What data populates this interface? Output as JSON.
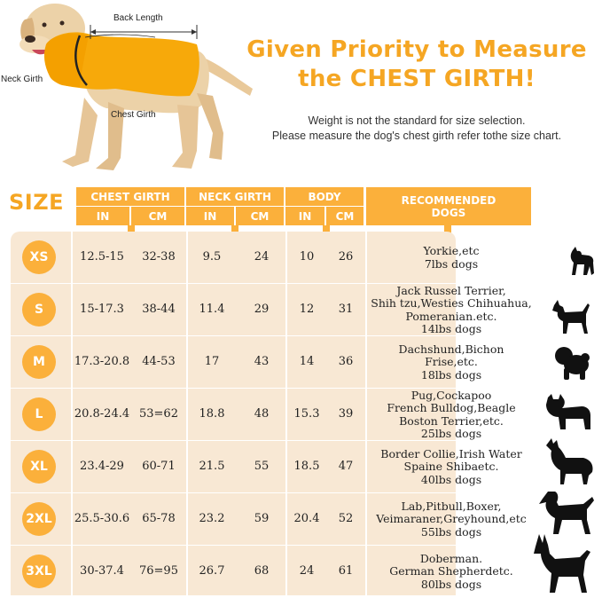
{
  "illustration": {
    "back_length_label": "Back Length",
    "neck_girth_label": "Neck Girth",
    "chest_girth_label": "Chest Girth"
  },
  "headline": {
    "line1": "Given Priority to Measure",
    "line2": "the CHEST GIRTH!"
  },
  "note": {
    "line1": "Weight is not the standard for size selection.",
    "line2": "Please measure the dog's chest girth refer tothe size chart."
  },
  "table": {
    "size_title": "SIZE",
    "headers": {
      "chest": "CHEST GIRTH",
      "neck": "NECK GIRTH",
      "body": "BODY",
      "recommended_line1": "RECOMMENDED",
      "recommended_line2": "DOGS",
      "in": "IN",
      "cm": "CM"
    },
    "rows": [
      {
        "size": "XS",
        "chest_in": "12.5-15",
        "chest_cm": "32-38",
        "neck_in": "9.5",
        "neck_cm": "24",
        "body_in": "10",
        "body_cm": "26",
        "rec": [
          "Yorkie,etc",
          "7lbs dogs"
        ]
      },
      {
        "size": "S",
        "chest_in": "15-17.3",
        "chest_cm": "38-44",
        "neck_in": "11.4",
        "neck_cm": "29",
        "body_in": "12",
        "body_cm": "31",
        "rec": [
          "Jack Russel Terrier,",
          "Shih tzu,Westies Chihuahua,",
          "Pomeranian.etc.",
          "14lbs dogs"
        ]
      },
      {
        "size": "M",
        "chest_in": "17.3-20.8",
        "chest_cm": "44-53",
        "neck_in": "17",
        "neck_cm": "43",
        "body_in": "14",
        "body_cm": "36",
        "rec": [
          "Dachshund,Bichon",
          "Frise,etc.",
          "18lbs dogs"
        ]
      },
      {
        "size": "L",
        "chest_in": "20.8-24.4",
        "chest_cm": "53=62",
        "neck_in": "18.8",
        "neck_cm": "48",
        "body_in": "15.3",
        "body_cm": "39",
        "rec": [
          "Pug,Cockapoo",
          "French Bulldog,Beagle",
          "Boston Terrier,etc.",
          "25lbs dogs"
        ]
      },
      {
        "size": "XL",
        "chest_in": "23.4-29",
        "chest_cm": "60-71",
        "neck_in": "21.5",
        "neck_cm": "55",
        "body_in": "18.5",
        "body_cm": "47",
        "rec": [
          "Border Collie,Irish Water",
          "Spaine Shibaetc.",
          "40lbs dogs"
        ]
      },
      {
        "size": "2XL",
        "chest_in": "25.5-30.6",
        "chest_cm": "65-78",
        "neck_in": "23.2",
        "neck_cm": "59",
        "body_in": "20.4",
        "body_cm": "52",
        "rec": [
          "Lab,Pitbull,Boxer,",
          "Veimaraner,Greyhound,etc",
          "55lbs dogs"
        ]
      },
      {
        "size": "3XL",
        "chest_in": "30-37.4",
        "chest_cm": "76=95",
        "neck_in": "26.7",
        "neck_cm": "68",
        "body_in": "24",
        "body_cm": "61",
        "rec": [
          "Doberman.",
          "German Shepherdetc.",
          "80lbs dogs"
        ]
      }
    ]
  },
  "colors": {
    "accent": "#f5a623",
    "header_orange": "#fbb03b",
    "table_bg": "#f8e8d4",
    "silhouette": "#111111"
  },
  "icons": [
    "yorkie-silhouette-icon",
    "terrier-silhouette-icon",
    "bichon-silhouette-icon",
    "bulldog-silhouette-icon",
    "collie-silhouette-icon",
    "spaniel-silhouette-icon",
    "doberman-silhouette-icon"
  ]
}
